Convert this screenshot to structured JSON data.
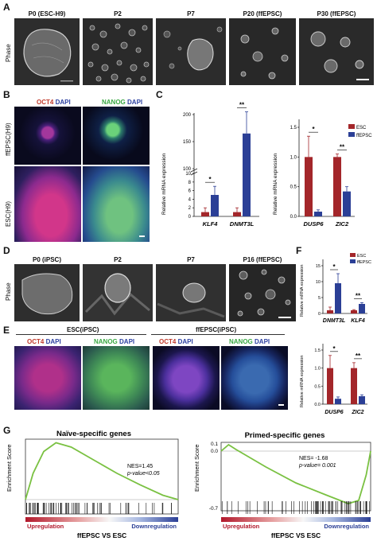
{
  "panel_letters": {
    "A": "A",
    "B": "B",
    "C": "C",
    "D": "D",
    "E": "E",
    "F": "F",
    "G": "G"
  },
  "panel_A": {
    "row_label": "Phase",
    "titles": [
      "P0 (ESC-H9)",
      "P2",
      "P7",
      "P20 (ffEPSC)",
      "P30 (ffEPSC)"
    ]
  },
  "panel_B": {
    "col1_a": "OCT4",
    "col1_b": "DAPI",
    "col2_a": "NANOG",
    "col2_b": "DAPI",
    "row_labels": [
      "ffEPSC(H9)",
      "ESC(H9)"
    ]
  },
  "panel_D": {
    "row_label": "Phase",
    "titles": [
      "P0 (iPSC)",
      "P2",
      "P7",
      "P16 (ffEPSC)"
    ]
  },
  "panel_E": {
    "group1": "ESC(iPSC)",
    "group2": "ffEPSC(iPSC)",
    "oct": "OCT4",
    "dapi": "DAPI",
    "nanog": "NANOG"
  },
  "colors": {
    "esc": "#a3262a",
    "ffepsc": "#2b3f96",
    "enrichment": "#7ac142"
  },
  "chart_data": [
    {
      "type": "bar",
      "panel": "C-left",
      "categories": [
        "KLF4",
        "DNMT3L"
      ],
      "series": [
        {
          "name": "ESC",
          "values": [
            1,
            1
          ]
        },
        {
          "name": "ffEPSC",
          "values": [
            5,
            165
          ]
        }
      ],
      "errors": [
        [
          1,
          1
        ],
        [
          2,
          40
        ]
      ],
      "ylabel": "Relative mRNA expression",
      "ticks_low": [
        "0",
        "2",
        "4",
        "6",
        "8",
        "10"
      ],
      "ticks_high": [
        "100",
        "150",
        "200"
      ],
      "sig": [
        "*",
        "**"
      ]
    },
    {
      "type": "bar",
      "panel": "C-right",
      "categories": [
        "DUSP6",
        "ZIC2"
      ],
      "series": [
        {
          "name": "ESC",
          "values": [
            1.0,
            1.0
          ]
        },
        {
          "name": "ffEPSC",
          "values": [
            0.08,
            0.42
          ]
        }
      ],
      "errors": [
        [
          0.35,
          0.05
        ],
        [
          0.03,
          0.08
        ]
      ],
      "ylabel": "Relative mRNA expression",
      "ylim": [
        0,
        1.5
      ],
      "ticks": [
        "0.0",
        "0.5",
        "1.0",
        "1.5"
      ],
      "sig": [
        "*",
        "**"
      ],
      "legend": [
        "ESC",
        "ffEPSC"
      ]
    },
    {
      "type": "bar",
      "panel": "F-top",
      "categories": [
        "DNMT3L",
        "KLF4"
      ],
      "series": [
        {
          "name": "ESC",
          "values": [
            1,
            1
          ]
        },
        {
          "name": "ffEPSC",
          "values": [
            9.5,
            3
          ]
        }
      ],
      "errors": [
        [
          1,
          0.2
        ],
        [
          3,
          0.4
        ]
      ],
      "ylabel": "Relative mRNA expression",
      "ylim": [
        0,
        15
      ],
      "ticks": [
        "0",
        "5",
        "10",
        "15"
      ],
      "sig": [
        "*",
        "**"
      ],
      "legend": [
        "ESC",
        "ffEPSC"
      ]
    },
    {
      "type": "bar",
      "panel": "F-bottom",
      "categories": [
        "DUSP6",
        "ZIC2"
      ],
      "series": [
        {
          "name": "ESC",
          "values": [
            1.0,
            1.0
          ]
        },
        {
          "name": "ffEPSC",
          "values": [
            0.15,
            0.22
          ]
        }
      ],
      "errors": [
        [
          0.35,
          0.15
        ],
        [
          0.05,
          0.04
        ]
      ],
      "ylabel": "Relative mRNA expression",
      "ylim": [
        0,
        1.5
      ],
      "ticks": [
        "0.0",
        "0.5",
        "1.0",
        "1.5"
      ],
      "sig": [
        "*",
        "**"
      ]
    },
    {
      "type": "line",
      "panel": "G-left",
      "title": "Naïve-specific genes",
      "ylabel": "Enrichment Score",
      "annotation_1": "NES=1.45",
      "annotation_2": "p-value<0.05",
      "profile": [
        [
          0,
          0
        ],
        [
          0.05,
          0.3
        ],
        [
          0.12,
          0.55
        ],
        [
          0.2,
          0.65
        ],
        [
          0.3,
          0.6
        ],
        [
          0.45,
          0.45
        ],
        [
          0.6,
          0.3
        ],
        [
          0.75,
          0.17
        ],
        [
          0.9,
          0.05
        ],
        [
          1,
          0
        ]
      ],
      "bar_left": "Upregulation",
      "bar_right": "Downregulation",
      "xlabel": "ffEPSC VS ESC"
    },
    {
      "type": "line",
      "panel": "G-right",
      "title": "Primed-specific genes",
      "ylabel": "Enrichment Score",
      "ticks": [
        "0.1",
        "0.0",
        "-0.7"
      ],
      "annotation_1": "NES= -1.68",
      "annotation_2": "p-value= 0.001",
      "profile": [
        [
          0,
          0
        ],
        [
          0.05,
          0.08
        ],
        [
          0.1,
          0.02
        ],
        [
          0.3,
          -0.2
        ],
        [
          0.5,
          -0.4
        ],
        [
          0.7,
          -0.55
        ],
        [
          0.85,
          -0.66
        ],
        [
          0.92,
          -0.62
        ],
        [
          0.97,
          -0.3
        ],
        [
          1,
          0
        ]
      ],
      "bar_left": "Upregulation",
      "bar_right": "Downregulation",
      "xlabel": "ffEPSC VS ESC"
    }
  ]
}
